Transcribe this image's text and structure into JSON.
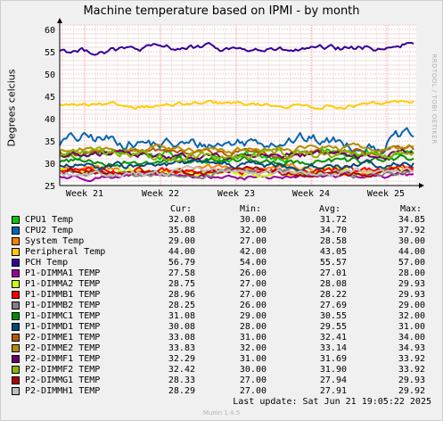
{
  "chart_data": {
    "type": "line",
    "title": "Machine temperature based on IPMI - by month",
    "ylabel": "Degrees celcius",
    "xlabel": "",
    "ylim": [
      25,
      61
    ],
    "yticks": [
      25,
      30,
      35,
      40,
      45,
      50,
      55,
      60
    ],
    "grid": true,
    "x_tick_labels": [
      "Week 21",
      "Week 22",
      "Week 23",
      "Week 24",
      "Week 25"
    ],
    "legend_headers": {
      "cur": "Cur:",
      "min": "Min:",
      "avg": "Avg:",
      "max": "Max:"
    },
    "series": [
      {
        "name": "CPU1 Temp",
        "color": "#00cc00",
        "cur": "32.08",
        "min": "30.00",
        "avg": "31.72",
        "max": "34.85"
      },
      {
        "name": "CPU2 Temp",
        "color": "#0066b3",
        "cur": "35.88",
        "min": "32.00",
        "avg": "34.70",
        "max": "37.92"
      },
      {
        "name": "System Temp",
        "color": "#ff8000",
        "cur": "29.00",
        "min": "27.00",
        "avg": "28.58",
        "max": "30.00"
      },
      {
        "name": "Peripheral Temp",
        "color": "#ffcc00",
        "cur": "44.00",
        "min": "42.00",
        "avg": "43.05",
        "max": "44.00"
      },
      {
        "name": "PCH Temp",
        "color": "#330099",
        "cur": "56.79",
        "min": "54.00",
        "avg": "55.57",
        "max": "57.00"
      },
      {
        "name": "P1-DIMMA1 TEMP",
        "color": "#990099",
        "cur": "27.58",
        "min": "26.00",
        "avg": "27.01",
        "max": "28.00"
      },
      {
        "name": "P1-DIMMA2 TEMP",
        "color": "#ccff00",
        "cur": "28.75",
        "min": "27.00",
        "avg": "28.08",
        "max": "29.93"
      },
      {
        "name": "P1-DIMMB1 TEMP",
        "color": "#ff0000",
        "cur": "28.96",
        "min": "27.00",
        "avg": "28.22",
        "max": "29.93"
      },
      {
        "name": "P1-DIMMB2 TEMP",
        "color": "#808080",
        "cur": "28.25",
        "min": "26.00",
        "avg": "27.69",
        "max": "29.00"
      },
      {
        "name": "P1-DIMMC1 TEMP",
        "color": "#008f00",
        "cur": "31.08",
        "min": "29.00",
        "avg": "30.55",
        "max": "32.00"
      },
      {
        "name": "P1-DIMMD1 TEMP",
        "color": "#00487d",
        "cur": "30.08",
        "min": "28.00",
        "avg": "29.55",
        "max": "31.00"
      },
      {
        "name": "P2-DIMME1 TEMP",
        "color": "#b35a00",
        "cur": "33.08",
        "min": "31.00",
        "avg": "32.41",
        "max": "34.00"
      },
      {
        "name": "P2-DIMME2 TEMP",
        "color": "#b38f00",
        "cur": "33.83",
        "min": "32.00",
        "avg": "33.14",
        "max": "34.93"
      },
      {
        "name": "P2-DIMMF1 TEMP",
        "color": "#6b006b",
        "cur": "32.29",
        "min": "31.00",
        "avg": "31.69",
        "max": "33.92"
      },
      {
        "name": "P2-DIMMF2 TEMP",
        "color": "#8fb300",
        "cur": "32.42",
        "min": "30.00",
        "avg": "31.90",
        "max": "33.92"
      },
      {
        "name": "P2-DIMMG1 TEMP",
        "color": "#b30000",
        "cur": "28.33",
        "min": "27.00",
        "avg": "27.94",
        "max": "29.93"
      },
      {
        "name": "P2-DIMMH1 TEMP",
        "color": "#bebebe",
        "cur": "28.29",
        "min": "27.00",
        "avg": "27.91",
        "max": "29.92"
      }
    ]
  },
  "footer": {
    "last_update": "Last update:  Sat Jun 21 19:05:22 2025",
    "munin_version": "Munin 1.4.5"
  },
  "watermark": "RRDTOOL / TOBI OETIKER"
}
